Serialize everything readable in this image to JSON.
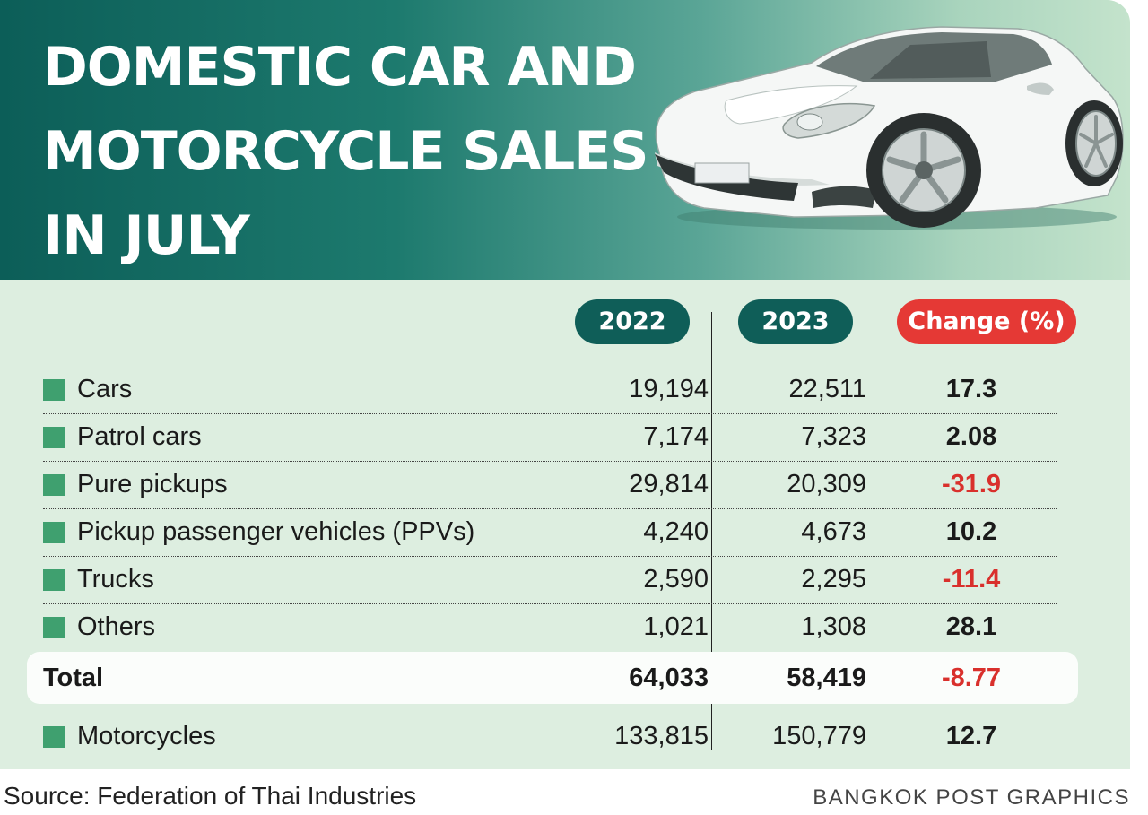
{
  "colors": {
    "header_dark": "#0c5e58",
    "pill_year": "#0f5e58",
    "pill_change": "#e53935",
    "bullet": "#3fa06f",
    "positive": "#1a1a1a",
    "negative": "#d9302c",
    "panel": "#ddeee0"
  },
  "chart_data": {
    "type": "table",
    "title": "DOMESTIC CAR AND\nMOTORCYCLE SALES\nIN JULY",
    "columns": [
      "2022",
      "2023",
      "Change (%)"
    ],
    "rows": [
      {
        "label": "Cars",
        "v2022": "19,194",
        "v2023": "22,511",
        "change": "17.3"
      },
      {
        "label": "Patrol cars",
        "v2022": "7,174",
        "v2023": "7,323",
        "change": "2.08"
      },
      {
        "label": "Pure pickups",
        "v2022": "29,814",
        "v2023": "20,309",
        "change": "-31.9"
      },
      {
        "label": "Pickup passenger vehicles (PPVs)",
        "v2022": "4,240",
        "v2023": "4,673",
        "change": "10.2"
      },
      {
        "label": "Trucks",
        "v2022": "2,590",
        "v2023": "2,295",
        "change": "-11.4"
      },
      {
        "label": "Others",
        "v2022": "1,021",
        "v2023": "1,308",
        "change": "28.1"
      }
    ],
    "total": {
      "label": "Total",
      "v2022": "64,033",
      "v2023": "58,419",
      "change": "-8.77"
    },
    "extra": {
      "label": "Motorcycles",
      "v2022": "133,815",
      "v2023": "150,779",
      "change": "12.7"
    }
  },
  "footer": {
    "source": "Source: Federation of Thai Industries",
    "credit": "BANGKOK POST GRAPHICS"
  }
}
